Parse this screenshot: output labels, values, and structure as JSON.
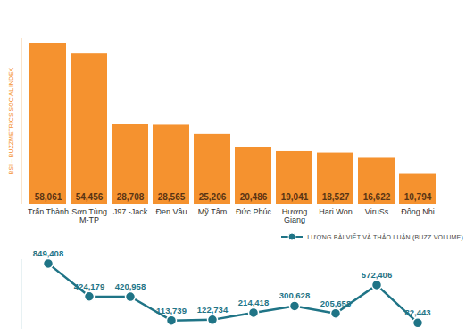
{
  "chart_data": {
    "type": "bar",
    "y_label": "BSI – BUZZMETRICS SOCIAL INDEX",
    "categories": [
      "Trấn Thành",
      "Sơn Tùng\nM-TP",
      "J97 -Jack",
      "Đen Vâu",
      "Mỹ Tâm",
      "Đức Phúc",
      "Hương\nGiang",
      "Hari Won",
      "ViruSs",
      "Đông Nhi"
    ],
    "series": [
      {
        "type": "bar",
        "color": "#f5922f",
        "values": [
          58061,
          54456,
          28708,
          28565,
          25206,
          20486,
          19041,
          18527,
          16622,
          10794
        ],
        "value_labels": [
          "58,061",
          "54,456",
          "28,708",
          "28,565",
          "25,206",
          "20,486",
          "19,041",
          "18,527",
          "16,622",
          "10,794"
        ]
      },
      {
        "name": "LƯỢNG BÀI VIẾT VÀ THẢO LUẬN (BUZZ VOLUME)",
        "type": "line",
        "axis": "y2",
        "color": "#1f7486",
        "marker": "circle",
        "values": [
          849408,
          424179,
          420958,
          113739,
          122734,
          214418,
          300628,
          205658,
          572406,
          82443
        ],
        "value_labels": [
          "849,408",
          "424,179",
          "420,958",
          "113,739",
          "122,734",
          "214,418",
          "300,628",
          "205,658",
          "572,406",
          "82,443"
        ]
      }
    ],
    "ylim": [
      0,
      60000
    ],
    "y2lim": [
      0,
      900000
    ],
    "data_labels": true,
    "tick_labels": "x",
    "legend": "top-right"
  }
}
